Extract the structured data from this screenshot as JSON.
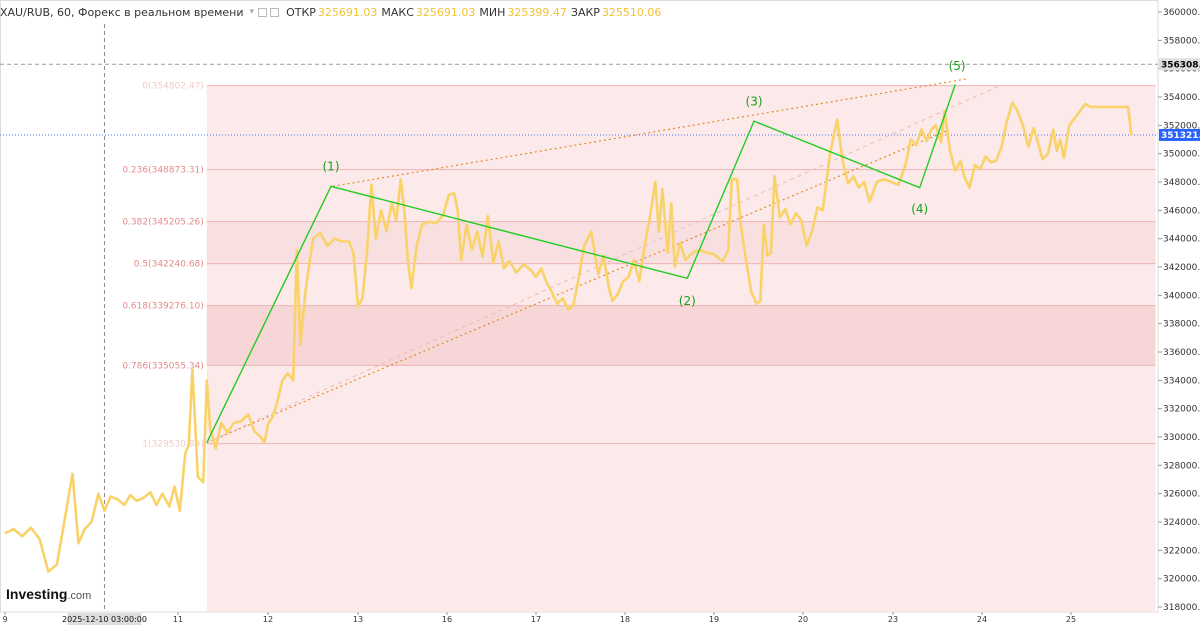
{
  "header": {
    "symbol_line": "XAU/RUB, 60, Форекс в реальном времени",
    "dropdown_icon": "chevron-down-icon",
    "open_label": "ОТКР",
    "open_value": "325691.03",
    "high_label": "МАКС",
    "high_value": "325691.03",
    "low_label": "МИН",
    "low_value": "325399.47",
    "close_label": "ЗАКР",
    "close_value": "325510.06"
  },
  "logo": {
    "brand": "Investing",
    "domain": ".com"
  },
  "colors": {
    "price_line": "#f9d26a",
    "wave_line": "#22cc22",
    "channel_line": "#e38a2c",
    "fib_zone": "#fce9e9",
    "fib_zone_dark": "#f6d6d6",
    "fib_line": "#eeb3b3",
    "fib_text": "#e58a8a",
    "current_price_badge": "#2962ff"
  },
  "chart_data": {
    "type": "line",
    "title": "XAU/RUB, 60, Форекс в реальном времени",
    "y_axis": {
      "min": 317000,
      "max": 361000,
      "ticks": [
        "360000.00",
        "358000.00",
        "356000.00",
        "354000.00",
        "352000.00",
        "350000.00",
        "348000.00",
        "346000.00",
        "344000.00",
        "342000.00",
        "340000.00",
        "338000.00",
        "336000.00",
        "334000.00",
        "332000.00",
        "330000.00",
        "328000.00",
        "326000.00",
        "324000.00",
        "322000.00",
        "320000.00",
        "318000.00"
      ],
      "tick_values": [
        360000,
        358000,
        356000,
        354000,
        352000,
        350000,
        348000,
        346000,
        344000,
        342000,
        340000,
        338000,
        336000,
        334000,
        332000,
        330000,
        328000,
        326000,
        324000,
        322000,
        320000,
        318000
      ]
    },
    "x_axis": {
      "min": 9.0,
      "max": 26.0,
      "ticks": [
        "9",
        "11",
        "12",
        "13",
        "16",
        "17",
        "18",
        "19",
        "20",
        "23",
        "24",
        "25"
      ],
      "tick_values": [
        9,
        11,
        12,
        13,
        14,
        15,
        16,
        17,
        18,
        19,
        20,
        21
      ],
      "crosshair_label": "2025-12-10 03:00:00",
      "crosshair_x": 10.15
    },
    "price_labels": {
      "marker": "356308.92",
      "marker_value": 356308.92,
      "current": "351321.96",
      "current_value": 351321.96
    },
    "price_series": {
      "name": "",
      "points": [
        [
          9.0,
          323200
        ],
        [
          9.1,
          323500
        ],
        [
          9.2,
          323000
        ],
        [
          9.3,
          323600
        ],
        [
          9.4,
          322800
        ],
        [
          9.5,
          320500
        ],
        [
          9.6,
          321000
        ],
        [
          9.7,
          324500
        ],
        [
          9.78,
          327400
        ],
        [
          9.85,
          322500
        ],
        [
          9.92,
          323500
        ],
        [
          10.0,
          324000
        ],
        [
          10.08,
          326000
        ],
        [
          10.15,
          324800
        ],
        [
          10.22,
          325800
        ],
        [
          10.3,
          325600
        ],
        [
          10.38,
          325200
        ],
        [
          10.45,
          325900
        ],
        [
          10.52,
          325500
        ],
        [
          10.6,
          325700
        ],
        [
          10.68,
          326100
        ],
        [
          10.75,
          325200
        ],
        [
          10.82,
          326000
        ],
        [
          10.9,
          325100
        ],
        [
          10.96,
          326500
        ],
        [
          11.02,
          324800
        ],
        [
          11.08,
          328800
        ],
        [
          11.12,
          329500
        ],
        [
          11.16,
          334800
        ],
        [
          11.22,
          327200
        ],
        [
          11.28,
          326800
        ],
        [
          11.32,
          334000
        ],
        [
          11.36,
          330500
        ],
        [
          11.42,
          329200
        ],
        [
          11.48,
          331000
        ],
        [
          11.55,
          330300
        ],
        [
          11.62,
          331000
        ],
        [
          11.7,
          331100
        ],
        [
          11.78,
          331600
        ],
        [
          11.85,
          330400
        ],
        [
          11.92,
          330000
        ],
        [
          11.96,
          329600
        ],
        [
          12.0,
          330900
        ],
        [
          12.05,
          331400
        ],
        [
          12.1,
          332400
        ],
        [
          12.16,
          334000
        ],
        [
          12.22,
          334500
        ],
        [
          12.28,
          334000
        ],
        [
          12.32,
          343200
        ],
        [
          12.36,
          336500
        ],
        [
          12.42,
          340500
        ],
        [
          12.5,
          344000
        ],
        [
          12.58,
          344400
        ],
        [
          12.66,
          343500
        ],
        [
          12.74,
          344000
        ],
        [
          12.82,
          343800
        ],
        [
          12.9,
          343800
        ],
        [
          12.95,
          343000
        ],
        [
          13.0,
          339200
        ],
        [
          13.05,
          339800
        ],
        [
          13.1,
          343000
        ],
        [
          13.15,
          347800
        ],
        [
          13.2,
          344000
        ],
        [
          13.26,
          346000
        ],
        [
          13.32,
          344500
        ],
        [
          13.38,
          346500
        ],
        [
          13.43,
          345300
        ],
        [
          13.48,
          348200
        ],
        [
          13.52,
          346000
        ],
        [
          13.56,
          342500
        ],
        [
          13.6,
          340500
        ],
        [
          13.66,
          343500
        ],
        [
          13.72,
          345000
        ],
        [
          13.8,
          345200
        ],
        [
          13.88,
          345100
        ],
        [
          13.96,
          345700
        ],
        [
          14.02,
          347100
        ],
        [
          14.08,
          347200
        ],
        [
          14.12,
          346000
        ],
        [
          14.16,
          342500
        ],
        [
          14.22,
          345000
        ],
        [
          14.28,
          343200
        ],
        [
          14.34,
          344500
        ],
        [
          14.4,
          342700
        ],
        [
          14.46,
          345600
        ],
        [
          14.52,
          342300
        ],
        [
          14.58,
          343800
        ],
        [
          14.64,
          341900
        ],
        [
          14.7,
          342400
        ],
        [
          14.78,
          341600
        ],
        [
          14.86,
          342200
        ],
        [
          14.94,
          341800
        ],
        [
          15.0,
          341300
        ],
        [
          15.06,
          341900
        ],
        [
          15.12,
          340900
        ],
        [
          15.18,
          340200
        ],
        [
          15.24,
          339400
        ],
        [
          15.3,
          339800
        ],
        [
          15.36,
          339000
        ],
        [
          15.42,
          339300
        ],
        [
          15.48,
          341200
        ],
        [
          15.54,
          343500
        ],
        [
          15.62,
          344500
        ],
        [
          15.7,
          341500
        ],
        [
          15.76,
          342800
        ],
        [
          15.82,
          340500
        ],
        [
          15.86,
          339600
        ],
        [
          15.92,
          340100
        ],
        [
          15.98,
          341000
        ],
        [
          16.04,
          341300
        ],
        [
          16.1,
          342500
        ],
        [
          16.16,
          341000
        ],
        [
          16.22,
          343500
        ],
        [
          16.28,
          345500
        ],
        [
          16.34,
          348000
        ],
        [
          16.38,
          344500
        ],
        [
          16.42,
          347500
        ],
        [
          16.48,
          343000
        ],
        [
          16.52,
          346500
        ],
        [
          16.56,
          342000
        ],
        [
          16.62,
          343700
        ],
        [
          16.68,
          342500
        ],
        [
          16.76,
          343000
        ],
        [
          16.84,
          343200
        ],
        [
          16.92,
          343000
        ],
        [
          17.0,
          342900
        ],
        [
          17.1,
          342400
        ],
        [
          17.16,
          343200
        ],
        [
          17.2,
          348200
        ],
        [
          17.26,
          348200
        ],
        [
          17.3,
          345000
        ],
        [
          17.36,
          342500
        ],
        [
          17.42,
          340200
        ],
        [
          17.48,
          339400
        ],
        [
          17.52,
          339600
        ],
        [
          17.56,
          345000
        ],
        [
          17.6,
          342800
        ],
        [
          17.64,
          343000
        ],
        [
          17.68,
          348400
        ],
        [
          17.74,
          345500
        ],
        [
          17.8,
          346100
        ],
        [
          17.86,
          345000
        ],
        [
          17.92,
          345800
        ],
        [
          17.98,
          345300
        ],
        [
          18.04,
          343500
        ],
        [
          18.1,
          344500
        ],
        [
          18.16,
          346200
        ],
        [
          18.22,
          346000
        ],
        [
          18.3,
          350000
        ],
        [
          18.38,
          352400
        ],
        [
          18.44,
          349500
        ],
        [
          18.5,
          347900
        ],
        [
          18.56,
          348400
        ],
        [
          18.62,
          347600
        ],
        [
          18.68,
          348000
        ],
        [
          18.74,
          346600
        ],
        [
          18.82,
          348000
        ],
        [
          18.9,
          348200
        ],
        [
          18.98,
          348000
        ],
        [
          19.06,
          347800
        ],
        [
          19.14,
          349200
        ],
        [
          19.2,
          351000
        ],
        [
          19.26,
          350600
        ],
        [
          19.32,
          351700
        ],
        [
          19.38,
          350900
        ],
        [
          19.43,
          351700
        ],
        [
          19.48,
          352000
        ],
        [
          19.54,
          350800
        ],
        [
          19.58,
          353000
        ],
        [
          19.64,
          350200
        ],
        [
          19.7,
          348800
        ],
        [
          19.76,
          349500
        ],
        [
          19.8,
          348400
        ],
        [
          19.86,
          347600
        ],
        [
          19.92,
          349200
        ],
        [
          19.98,
          348900
        ],
        [
          20.04,
          349800
        ],
        [
          20.1,
          349400
        ],
        [
          20.16,
          349500
        ],
        [
          20.22,
          350500
        ],
        [
          20.28,
          352300
        ],
        [
          20.34,
          353600
        ],
        [
          20.4,
          353000
        ],
        [
          20.46,
          352000
        ],
        [
          20.52,
          350500
        ],
        [
          20.58,
          351800
        ],
        [
          20.62,
          351000
        ],
        [
          20.68,
          349600
        ],
        [
          20.74,
          350000
        ],
        [
          20.8,
          351700
        ],
        [
          20.84,
          350200
        ],
        [
          20.88,
          351000
        ],
        [
          20.92,
          349700
        ],
        [
          20.98,
          352000
        ],
        [
          21.04,
          352500
        ],
        [
          21.1,
          353000
        ],
        [
          21.16,
          353500
        ],
        [
          21.22,
          353300
        ],
        [
          21.3,
          353300
        ],
        [
          21.4,
          353300
        ],
        [
          21.5,
          353300
        ],
        [
          21.58,
          353300
        ],
        [
          21.64,
          353300
        ],
        [
          21.68,
          351300
        ]
      ]
    },
    "waves": {
      "labels": [
        "(1)",
        "(2)",
        "(3)",
        "(4)",
        "(5)"
      ],
      "points": [
        [
          11.32,
          329600
        ],
        [
          12.7,
          347700
        ],
        [
          16.7,
          341200
        ],
        [
          17.45,
          352300
        ],
        [
          19.3,
          347600
        ],
        [
          19.7,
          354900
        ]
      ],
      "label_points": [
        [
          12.7,
          349100
        ],
        [
          16.7,
          339600
        ],
        [
          17.45,
          353700
        ],
        [
          19.3,
          346100
        ],
        [
          19.72,
          356200
        ]
      ]
    },
    "channel": {
      "upper": [
        [
          12.72,
          347700
        ],
        [
          19.85,
          355300
        ]
      ],
      "lower": [
        [
          11.32,
          329600
        ],
        [
          19.6,
          351600
        ]
      ],
      "faint": [
        [
          11.32,
          329600
        ],
        [
          20.2,
          354800
        ]
      ]
    },
    "fibonacci": {
      "x_start": 11.32,
      "x_end": 21.95,
      "levels": [
        {
          "label": "0(354802.47)",
          "value": 354802.47
        },
        {
          "label": "0.236(348873.31)",
          "value": 348873.31
        },
        {
          "label": "0.382(345205.26)",
          "value": 345205.26
        },
        {
          "label": "0.5(342240.68)",
          "value": 342240.68
        },
        {
          "label": "0.618(339276.10)",
          "value": 339276.1
        },
        {
          "label": "0.786(335055.34)",
          "value": 335055.34
        },
        {
          "label": "1(329530.89)",
          "value": 329530.89
        }
      ]
    }
  }
}
